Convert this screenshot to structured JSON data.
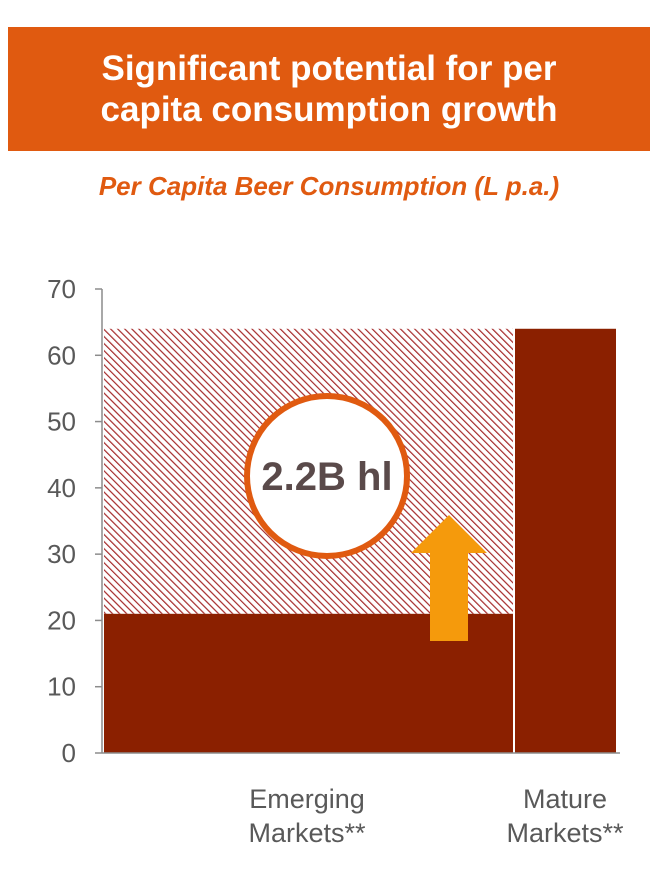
{
  "header": {
    "title": "Significant potential for per capita consumption growth"
  },
  "chart_data": {
    "type": "bar",
    "title": "Per Capita Beer Consumption (L p.a.)",
    "categories": [
      "Emerging Markets**",
      "Mature Markets**"
    ],
    "category_lines": [
      [
        "Emerging",
        "Markets**"
      ],
      [
        "Mature",
        "Markets**"
      ]
    ],
    "values": [
      21,
      64
    ],
    "ylim": [
      0,
      70
    ],
    "yticks": [
      0,
      10,
      20,
      30,
      40,
      50,
      60,
      70
    ],
    "gap_to": 64,
    "annotation": "2.2B hl",
    "grid": false,
    "colors": {
      "bar": "#8b2000",
      "hatch": "#a52a2a",
      "arrow": "#f59a0c",
      "circle_stroke": "#e05a10",
      "axis": "#8c8c8c"
    }
  }
}
